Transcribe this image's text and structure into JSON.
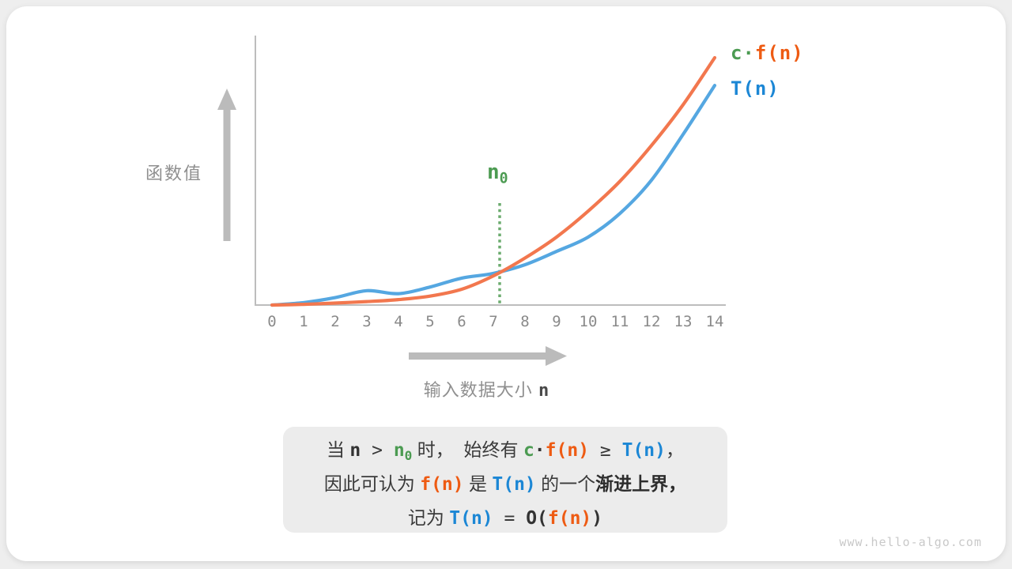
{
  "watermark": "www.hello-algo.com",
  "colors": {
    "orange_line": "#F2774E",
    "blue_line": "#55A7E1",
    "orange_text": "#EE5B13",
    "blue_text": "#1C87D5",
    "green": "#4C9B52",
    "green_dotted": "#6BAB6E",
    "axis_gray": "#BDBDBD",
    "arrow_gray": "#BBBBBB",
    "caption_bg": "#ECECEC"
  },
  "chart": {
    "y_axis_label": "函数值",
    "x_label_text": "输入数据大小",
    "x_label_var": "n",
    "n0": {
      "base": "n",
      "sub": "0"
    }
  },
  "legend": [
    {
      "id": "cfn",
      "segments": [
        {
          "t": "c",
          "cls": "seg-green"
        },
        {
          "t": "·",
          "cls": "seg-green"
        },
        {
          "t": "f(n)",
          "cls": "seg-orange"
        }
      ]
    },
    {
      "id": "tn",
      "segments": [
        {
          "t": "T(n)",
          "cls": "seg-blue"
        }
      ]
    }
  ],
  "caption": {
    "lines": [
      [
        {
          "t": "当 ",
          "cls": "cjk"
        },
        {
          "t": "n",
          "cls": "seg-darkmono"
        },
        {
          "t": " > ",
          "cls": "seg-plainmono"
        },
        {
          "t": "n",
          "cls": "seg-green"
        },
        {
          "t": "0",
          "cls": "seg-green sub"
        },
        {
          "t": " 时， ",
          "cls": "cjk"
        },
        {
          "t": " 始终有 ",
          "cls": "cjk"
        },
        {
          "t": "c",
          "cls": "seg-green"
        },
        {
          "t": "·",
          "cls": "seg-darkmono"
        },
        {
          "t": "f(n)",
          "cls": "seg-orange"
        },
        {
          "t": " ≥ ",
          "cls": "seg-plainmono"
        },
        {
          "t": "T(n)",
          "cls": "seg-blue"
        },
        {
          "t": "，",
          "cls": "cjk"
        }
      ],
      [
        {
          "t": "因此可认为 ",
          "cls": "cjk"
        },
        {
          "t": "f(n)",
          "cls": "seg-orange"
        },
        {
          "t": " 是 ",
          "cls": "cjk"
        },
        {
          "t": "T(n)",
          "cls": "seg-blue"
        },
        {
          "t": " 的一个",
          "cls": "cjk"
        },
        {
          "t": "渐进上界，",
          "cls": "cjk-bold"
        }
      ],
      [
        {
          "t": "记为 ",
          "cls": "cjk"
        },
        {
          "t": "T(n)",
          "cls": "seg-blue"
        },
        {
          "t": " = ",
          "cls": "seg-plainmono"
        },
        {
          "t": "O(",
          "cls": "seg-darkmono"
        },
        {
          "t": "f(n)",
          "cls": "seg-orange"
        },
        {
          "t": ")",
          "cls": "seg-darkmono"
        }
      ]
    ]
  },
  "chart_data": {
    "type": "line",
    "x": [
      0,
      1,
      2,
      3,
      4,
      5,
      6,
      7,
      8,
      9,
      10,
      11,
      12,
      13,
      14
    ],
    "x_ticks": [
      "0",
      "1",
      "2",
      "3",
      "4",
      "5",
      "6",
      "7",
      "8",
      "9",
      "10",
      "11",
      "12",
      "13",
      "14"
    ],
    "series": [
      {
        "name": "T(n)",
        "color": "#55A7E1",
        "values": [
          0,
          1.0,
          3.0,
          5.8,
          4.6,
          7.3,
          10.9,
          12.8,
          16.3,
          21.7,
          27.5,
          37,
          50.5,
          69,
          88.8
        ]
      },
      {
        "name": "c·f(n)",
        "color": "#F2774E",
        "values": [
          0,
          0.3,
          0.8,
          1.4,
          2.2,
          3.6,
          6.4,
          11.8,
          19,
          27.5,
          38,
          50,
          64.5,
          81,
          100
        ]
      }
    ],
    "n0_x": 7.2,
    "n0_label": "n0",
    "xlabel": "输入数据大小 n",
    "ylabel": "函数值",
    "ylim": [
      0,
      100
    ],
    "grid": false,
    "legend_position": "top-right",
    "annotation": "当 n > n0 时， 始终有 c·f(n) ≥ T(n)，因此可认为 f(n) 是 T(n) 的一个渐进上界，记为 T(n) = O(f(n))"
  }
}
